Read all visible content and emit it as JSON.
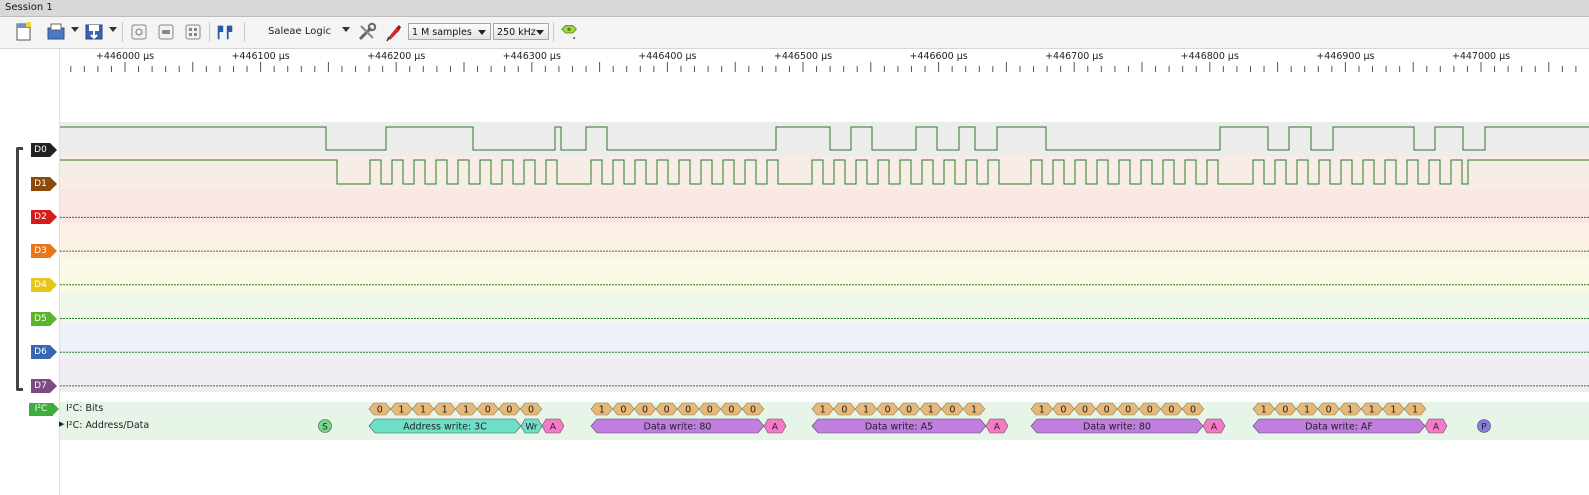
{
  "window": {
    "title": "Session 1"
  },
  "toolbar": {
    "device_name": "Saleae Logic",
    "samples": "1 M samples",
    "sample_rate": "250 kHz",
    "icons": [
      "new-session-icon",
      "open-icon",
      "save-icon",
      "capture-icon",
      "capture-icon-2",
      "zoom-fit-icon",
      "markers-icon",
      "settings-icon",
      "trigger-pen-icon",
      "analyzer-icon"
    ]
  },
  "ruler": {
    "labels": [
      "+446000 µs",
      "+446100 µs",
      "+446200 µs",
      "+446300 µs",
      "+446400 µs",
      "+446500 µs",
      "+446600 µs",
      "+446700 µs",
      "+446800 µs",
      "+446900 µs",
      "+447000 µs"
    ]
  },
  "channels": [
    {
      "label": "D0",
      "color": "#222222"
    },
    {
      "label": "D1",
      "color": "#8a4b08"
    },
    {
      "label": "D2",
      "color": "#d41c1c"
    },
    {
      "label": "D3",
      "color": "#e8791a"
    },
    {
      "label": "D4",
      "color": "#e8c51a"
    },
    {
      "label": "D5",
      "color": "#59b62a"
    },
    {
      "label": "D6",
      "color": "#3b66b0"
    },
    {
      "label": "D7",
      "color": "#7a4d82"
    }
  ],
  "analyzer": {
    "tag": "I²C",
    "bits_label": "I²C: Bits",
    "addr_label": "I²C: Address/Data",
    "bytes": [
      {
        "bits": [
          "0",
          "1",
          "1",
          "1",
          "1",
          "0",
          "0",
          "0"
        ]
      },
      {
        "bits": [
          "1",
          "0",
          "0",
          "0",
          "0",
          "0",
          "0",
          "0"
        ]
      },
      {
        "bits": [
          "1",
          "0",
          "1",
          "0",
          "0",
          "1",
          "0",
          "1"
        ]
      },
      {
        "bits": [
          "1",
          "0",
          "0",
          "0",
          "0",
          "0",
          "0",
          "0"
        ]
      },
      {
        "bits": [
          "1",
          "0",
          "1",
          "0",
          "1",
          "1",
          "1",
          "1"
        ]
      }
    ],
    "last_bit_first_byte": "0",
    "frames": [
      {
        "text": "Address write: 3C",
        "kind": "address"
      },
      {
        "text": "Data write: 80",
        "kind": "data"
      },
      {
        "text": "Data write: A5",
        "kind": "data"
      },
      {
        "text": "Data write: 80",
        "kind": "data"
      },
      {
        "text": "Data write: AF",
        "kind": "data"
      }
    ],
    "start_marker": "S",
    "stop_marker": "P",
    "wr_marker": "Wr",
    "ack_marker": "A",
    "colors": {
      "address": "#6fe0c8",
      "data": "#c17de0",
      "bits": "#e6b97a",
      "ack": "#f47ac8",
      "start": "#72d88a",
      "stop": "#8a7be0"
    }
  }
}
